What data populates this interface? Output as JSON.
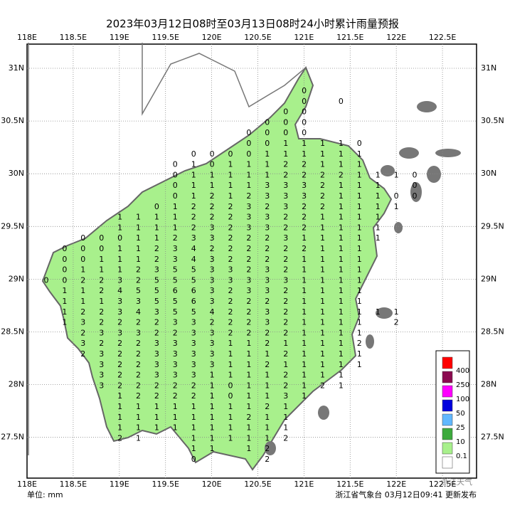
{
  "header": {
    "title": "2023年03月12日08时至03月13日08时24小时累计雨量预报"
  },
  "axes": {
    "lon_labels": [
      "118E",
      "118.5E",
      "119E",
      "119.5E",
      "120E",
      "120.5E",
      "121E",
      "121.5E",
      "122E",
      "122.5E"
    ],
    "lat_labels": [
      "31N",
      "30.5N",
      "30N",
      "29.5N",
      "29N",
      "28.5N",
      "28N",
      "27.5N"
    ]
  },
  "grid": [
    [
      null,
      null,
      null,
      null,
      null,
      null,
      null,
      null,
      null,
      null,
      null,
      null,
      null,
      null,
      0
    ],
    [
      null,
      null,
      null,
      null,
      null,
      null,
      null,
      null,
      null,
      null,
      null,
      null,
      null,
      null,
      0,
      null,
      0
    ],
    [
      null,
      null,
      null,
      null,
      null,
      null,
      null,
      null,
      null,
      null,
      null,
      null,
      null,
      0,
      0
    ],
    [
      null,
      null,
      null,
      null,
      null,
      null,
      null,
      null,
      null,
      null,
      null,
      null,
      0,
      0,
      0
    ],
    [
      null,
      null,
      null,
      null,
      null,
      null,
      null,
      null,
      null,
      null,
      null,
      0,
      0,
      0,
      0
    ],
    [
      null,
      null,
      null,
      null,
      null,
      null,
      null,
      null,
      null,
      null,
      null,
      0,
      0,
      1,
      1,
      1,
      1,
      0
    ],
    [
      null,
      null,
      null,
      null,
      null,
      null,
      null,
      null,
      0,
      0,
      0,
      0,
      1,
      1,
      1,
      1,
      1,
      1
    ],
    [
      null,
      null,
      null,
      null,
      null,
      null,
      null,
      0,
      1,
      0,
      1,
      1,
      1,
      2,
      2,
      1,
      1,
      1
    ],
    [
      null,
      null,
      null,
      null,
      null,
      null,
      null,
      0,
      1,
      1,
      1,
      1,
      1,
      2,
      2,
      2,
      2,
      1,
      1,
      1,
      0
    ],
    [
      null,
      null,
      null,
      null,
      null,
      null,
      null,
      0,
      1,
      1,
      1,
      1,
      3,
      3,
      3,
      2,
      1,
      1,
      1,
      null,
      0
    ],
    [
      null,
      null,
      null,
      null,
      null,
      null,
      null,
      0,
      1,
      2,
      1,
      2,
      3,
      3,
      3,
      2,
      1,
      1,
      1,
      0,
      0
    ],
    [
      null,
      null,
      null,
      null,
      null,
      null,
      0,
      1,
      2,
      2,
      2,
      3,
      2,
      3,
      2,
      2,
      1,
      1,
      1,
      1
    ],
    [
      null,
      null,
      null,
      null,
      1,
      1,
      1,
      1,
      2,
      2,
      2,
      3,
      3,
      2,
      2,
      1,
      1,
      1,
      1
    ],
    [
      null,
      null,
      null,
      null,
      1,
      1,
      1,
      1,
      2,
      3,
      2,
      3,
      3,
      2,
      2,
      1,
      1,
      1,
      1
    ],
    [
      null,
      null,
      0,
      0,
      0,
      1,
      1,
      2,
      3,
      3,
      2,
      2,
      2,
      3,
      1,
      1,
      1,
      1,
      1
    ],
    [
      null,
      0,
      0,
      0,
      1,
      1,
      2,
      3,
      4,
      2,
      2,
      2,
      2,
      2,
      2,
      1,
      1,
      1
    ],
    [
      null,
      0,
      0,
      1,
      1,
      1,
      2,
      3,
      4,
      3,
      2,
      2,
      2,
      2,
      1,
      1,
      1,
      1
    ],
    [
      null,
      0,
      1,
      1,
      1,
      2,
      3,
      5,
      5,
      3,
      3,
      2,
      3,
      2,
      1,
      1,
      1,
      1
    ],
    [
      0,
      0,
      2,
      2,
      3,
      2,
      5,
      5,
      5,
      3,
      3,
      3,
      3,
      3,
      1,
      1,
      1,
      1
    ],
    [
      null,
      1,
      1,
      2,
      4,
      5,
      5,
      6,
      6,
      3,
      2,
      3,
      3,
      2,
      1,
      1,
      1,
      1
    ],
    [
      null,
      1,
      1,
      1,
      3,
      3,
      5,
      5,
      6,
      3,
      2,
      2,
      2,
      2,
      1,
      1,
      1,
      1
    ],
    [
      null,
      1,
      2,
      2,
      3,
      4,
      3,
      5,
      5,
      4,
      2,
      2,
      3,
      2,
      1,
      1,
      1,
      1,
      1,
      1
    ],
    [
      null,
      1,
      3,
      2,
      2,
      2,
      2,
      3,
      3,
      2,
      2,
      2,
      3,
      2,
      1,
      1,
      1,
      1,
      null,
      2
    ],
    [
      null,
      null,
      2,
      3,
      3,
      3,
      2,
      2,
      3,
      3,
      2,
      2,
      2,
      2,
      1,
      1,
      1,
      1
    ],
    [
      null,
      null,
      3,
      2,
      2,
      2,
      3,
      3,
      3,
      3,
      1,
      1,
      2,
      1,
      1,
      1,
      1,
      2
    ],
    [
      null,
      null,
      2,
      3,
      2,
      2,
      3,
      3,
      3,
      3,
      1,
      1,
      1,
      2,
      1,
      1,
      1,
      1
    ],
    [
      null,
      null,
      null,
      3,
      2,
      2,
      3,
      3,
      3,
      3,
      1,
      1,
      2,
      1,
      1,
      1,
      1,
      1
    ],
    [
      null,
      null,
      null,
      3,
      2,
      2,
      3,
      3,
      3,
      1,
      1,
      1,
      1,
      2,
      1,
      1,
      1
    ],
    [
      null,
      null,
      null,
      3,
      2,
      2,
      2,
      2,
      2,
      1,
      0,
      1,
      1,
      2,
      1,
      2,
      1
    ],
    [
      null,
      null,
      null,
      null,
      1,
      2,
      2,
      2,
      2,
      1,
      0,
      1,
      1,
      3,
      1
    ],
    [
      null,
      null,
      null,
      null,
      1,
      1,
      1,
      1,
      1,
      1,
      1,
      1,
      2,
      1
    ],
    [
      null,
      null,
      null,
      null,
      1,
      1,
      1,
      1,
      1,
      1,
      1,
      2,
      1,
      1
    ],
    [
      null,
      null,
      null,
      null,
      1,
      1,
      1,
      1,
      1,
      1,
      1,
      1,
      1,
      1
    ],
    [
      null,
      null,
      null,
      null,
      2,
      1,
      null,
      null,
      1,
      1,
      1,
      1,
      1,
      2
    ],
    [
      null,
      null,
      null,
      null,
      null,
      null,
      null,
      null,
      1,
      1,
      null,
      1,
      2
    ],
    [
      null,
      null,
      null,
      null,
      null,
      null,
      null,
      null,
      0,
      null,
      null,
      null,
      2
    ]
  ],
  "legend": {
    "colors": [
      "#ff0000",
      "#8b0a50",
      "#ff00ff",
      "#0000dd",
      "#61b8ff",
      "#3daa3d",
      "#a8f08c",
      "#ffffff"
    ],
    "labels": [
      "400",
      "250",
      "100",
      "50",
      "25",
      "10",
      "0.1"
    ]
  },
  "footer": {
    "unit": "单位: mm",
    "issuer": "浙江省气象台 03月12日09:41 更新发布",
    "watermark": "浙江天气"
  }
}
